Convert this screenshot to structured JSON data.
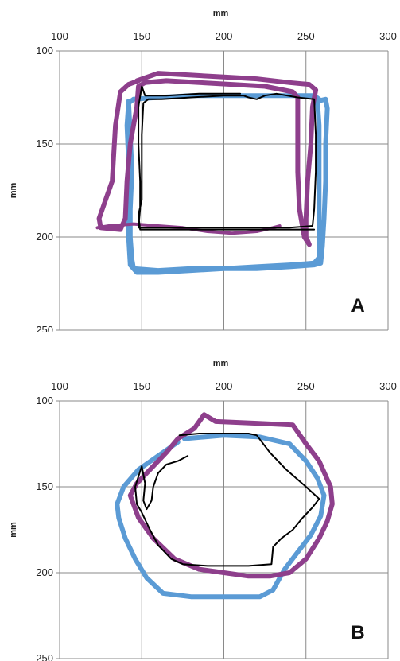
{
  "chart_data": [
    {
      "type": "line",
      "panel_label": "A",
      "xlabel": "mm",
      "ylabel": "mm",
      "xlim": [
        100,
        300
      ],
      "ylim": [
        100,
        250
      ],
      "y_inverted": true,
      "grid": true,
      "x_ticks": [
        "100",
        "150",
        "200",
        "250",
        "300"
      ],
      "y_ticks": [
        "100",
        "150",
        "200",
        "250"
      ],
      "series": [
        {
          "color": "#5b9bd5",
          "width": 6,
          "points": [
            [
              142,
              127
            ],
            [
              143,
              145
            ],
            [
              144,
              165
            ],
            [
              143,
              185
            ],
            [
              143,
              200
            ],
            [
              144,
              212
            ],
            [
              145,
              217
            ],
            [
              160,
              218
            ],
            [
              180,
              217
            ],
            [
              200,
              217
            ],
            [
              220,
              216
            ],
            [
              240,
              215
            ],
            [
              255,
              214
            ],
            [
              258,
              211
            ],
            [
              258,
              195
            ],
            [
              258,
              175
            ],
            [
              258,
              155
            ],
            [
              258,
              140
            ],
            [
              257,
              127
            ],
            [
              262,
              126
            ],
            [
              263,
              131
            ],
            [
              262,
              150
            ],
            [
              262,
              170
            ],
            [
              261,
              190
            ],
            [
              260,
              205
            ],
            [
              259,
              214
            ],
            [
              255,
              215
            ],
            [
              240,
              216
            ],
            [
              220,
              217
            ],
            [
              200,
              217
            ],
            [
              180,
              218
            ],
            [
              160,
              219
            ],
            [
              147,
              219
            ],
            [
              143,
              215
            ],
            [
              142,
              200
            ],
            [
              141,
              180
            ],
            [
              142,
              160
            ],
            [
              141,
              140
            ],
            [
              142,
              128
            ],
            [
              145,
              126
            ],
            [
              160,
              125
            ],
            [
              180,
              124
            ],
            [
              200,
              124
            ],
            [
              220,
              124
            ],
            [
              240,
              124
            ],
            [
              255,
              124
            ],
            [
              258,
              126
            ]
          ]
        },
        {
          "color": "#8e3f8c",
          "width": 6,
          "points": [
            [
              147,
              116
            ],
            [
              160,
              112
            ],
            [
              180,
              113
            ],
            [
              200,
              114
            ],
            [
              220,
              115
            ],
            [
              240,
              117
            ],
            [
              252,
              118
            ],
            [
              256,
              121
            ],
            [
              254,
              130
            ],
            [
              253,
              150
            ],
            [
              251,
              170
            ],
            [
              250,
              190
            ],
            [
              250,
              200
            ],
            [
              252,
              204
            ],
            [
              249,
              200
            ],
            [
              246,
              185
            ],
            [
              245,
              165
            ],
            [
              245,
              145
            ],
            [
              245,
              125
            ],
            [
              242,
              122
            ],
            [
              225,
              119
            ],
            [
              205,
              118
            ],
            [
              185,
              117
            ],
            [
              165,
              116
            ],
            [
              152,
              117
            ],
            [
              148,
              119
            ],
            [
              147,
              130
            ],
            [
              143,
              150
            ],
            [
              141,
              170
            ],
            [
              140,
              190
            ],
            [
              137,
              196
            ],
            [
              125,
              195
            ],
            [
              124,
              190
            ],
            [
              128,
              180
            ],
            [
              132,
              170
            ],
            [
              133,
              155
            ],
            [
              134,
              140
            ],
            [
              137,
              122
            ],
            [
              142,
              118
            ],
            [
              148,
              116
            ]
          ]
        },
        {
          "color": "#8e3f8c",
          "width": 4,
          "points": [
            [
              123,
              195
            ],
            [
              130,
              194
            ],
            [
              145,
              193
            ],
            [
              160,
              194
            ],
            [
              175,
              195
            ],
            [
              190,
              197
            ],
            [
              205,
              198
            ],
            [
              220,
              197
            ],
            [
              230,
              195
            ],
            [
              234,
              194
            ]
          ]
        },
        {
          "color": "#000000",
          "width": 2,
          "points": [
            [
              210,
              123
            ],
            [
              185,
              123
            ],
            [
              165,
              124
            ],
            [
              152,
              124
            ],
            [
              150,
              119
            ],
            [
              148,
              130
            ],
            [
              148,
              150
            ],
            [
              149,
              170
            ],
            [
              149,
              185
            ],
            [
              148,
              195
            ],
            [
              160,
              195
            ],
            [
              190,
              195
            ],
            [
              220,
              195
            ],
            [
              240,
              195
            ],
            [
              254,
              194
            ],
            [
              255,
              185
            ],
            [
              256,
              165
            ],
            [
              256,
              145
            ],
            [
              255,
              126
            ],
            [
              245,
              125
            ],
            [
              232,
              123
            ],
            [
              225,
              124
            ],
            [
              220,
              126
            ],
            [
              215,
              125
            ],
            [
              212,
              124
            ],
            [
              200,
              124
            ],
            [
              180,
              125
            ],
            [
              162,
              126
            ],
            [
              154,
              126
            ],
            [
              151,
              128
            ],
            [
              150,
              145
            ],
            [
              150,
              165
            ],
            [
              150,
              180
            ],
            [
              148,
              188
            ],
            [
              149,
              196
            ],
            [
              170,
              196
            ],
            [
              200,
              196
            ],
            [
              230,
              196
            ],
            [
              250,
              196
            ],
            [
              255,
              196
            ]
          ]
        }
      ]
    },
    {
      "type": "line",
      "panel_label": "B",
      "xlabel": "mm",
      "ylabel": "mm",
      "xlim": [
        100,
        300
      ],
      "ylim": [
        100,
        250
      ],
      "y_inverted": true,
      "grid": true,
      "x_ticks": [
        "100",
        "150",
        "200",
        "250",
        "300"
      ],
      "y_ticks": [
        "100",
        "150",
        "200",
        "250"
      ],
      "series": [
        {
          "color": "#5b9bd5",
          "width": 6,
          "points": [
            [
              176,
              122
            ],
            [
              200,
              120
            ],
            [
              222,
              121
            ],
            [
              240,
              125
            ],
            [
              250,
              135
            ],
            [
              257,
              145
            ],
            [
              261,
              155
            ],
            [
              259,
              167
            ],
            [
              253,
              178
            ],
            [
              245,
              188
            ],
            [
              237,
              198
            ],
            [
              230,
              210
            ],
            [
              222,
              214
            ],
            [
              200,
              214
            ],
            [
              180,
              214
            ],
            [
              163,
              212
            ],
            [
              153,
              203
            ],
            [
              146,
              192
            ],
            [
              140,
              180
            ],
            [
              136,
              168
            ],
            [
              135,
              160
            ],
            [
              139,
              150
            ],
            [
              148,
              140
            ],
            [
              160,
              132
            ],
            [
              172,
              124
            ]
          ]
        },
        {
          "color": "#8e3f8c",
          "width": 6,
          "points": [
            [
              172,
              122
            ],
            [
              182,
              116
            ],
            [
              188,
              108
            ],
            [
              195,
              112
            ],
            [
              220,
              113
            ],
            [
              242,
              114
            ],
            [
              250,
              125
            ],
            [
              258,
              135
            ],
            [
              265,
              150
            ],
            [
              266,
              160
            ],
            [
              263,
              170
            ],
            [
              258,
              180
            ],
            [
              250,
              192
            ],
            [
              240,
              200
            ],
            [
              228,
              202
            ],
            [
              215,
              202
            ],
            [
              200,
              200
            ],
            [
              185,
              198
            ],
            [
              170,
              192
            ],
            [
              157,
              180
            ],
            [
              148,
              168
            ],
            [
              143,
              155
            ],
            [
              147,
              148
            ],
            [
              155,
              140
            ],
            [
              165,
              130
            ],
            [
              172,
              122
            ]
          ]
        },
        {
          "color": "#000000",
          "width": 2,
          "points": [
            [
              173,
              120
            ],
            [
              185,
              119
            ],
            [
              215,
              119
            ],
            [
              220,
              120
            ],
            [
              228,
              130
            ],
            [
              238,
              140
            ],
            [
              250,
              150
            ],
            [
              258,
              157
            ],
            [
              254,
              162
            ],
            [
              248,
              168
            ],
            [
              242,
              175
            ],
            [
              235,
              180
            ],
            [
              230,
              185
            ],
            [
              229,
              195
            ],
            [
              215,
              196
            ],
            [
              190,
              196
            ],
            [
              175,
              195
            ],
            [
              168,
              192
            ],
            [
              160,
              184
            ],
            [
              155,
              175
            ],
            [
              150,
              165
            ],
            [
              147,
              160
            ],
            [
              146,
              150
            ],
            [
              148,
              144
            ],
            [
              150,
              138
            ],
            [
              152,
              148
            ],
            [
              151,
              158
            ],
            [
              153,
              163
            ],
            [
              156,
              158
            ],
            [
              157,
              150
            ],
            [
              160,
              142
            ],
            [
              165,
              137
            ],
            [
              172,
              135
            ],
            [
              178,
              132
            ]
          ]
        }
      ]
    }
  ]
}
